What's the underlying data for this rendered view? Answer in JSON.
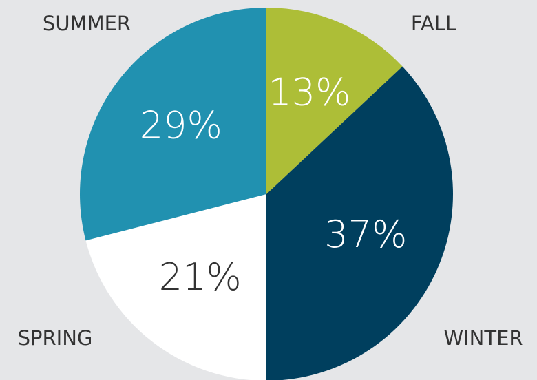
{
  "chart_data": {
    "type": "pie",
    "categories": [
      "FALL",
      "WINTER",
      "SPRING",
      "SUMMER"
    ],
    "values": [
      13,
      37,
      21,
      29
    ],
    "value_labels": [
      "13%",
      "37%",
      "21%",
      "29%"
    ],
    "colors": [
      "#adbe37",
      "#003f5e",
      "#ffffff",
      "#2191b0"
    ],
    "label_colors": [
      "#ffffff",
      "#ffffff",
      "#333333",
      "#ffffff"
    ]
  }
}
